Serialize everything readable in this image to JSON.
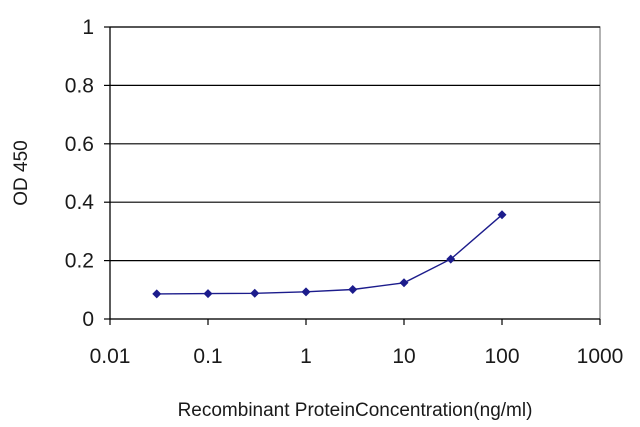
{
  "chart_data": {
    "type": "line",
    "title": "",
    "xlabel": "Recombinant ProteinConcentration(ng/ml)",
    "ylabel": "OD 450",
    "x_scale": "log",
    "xlim": [
      0.01,
      1000
    ],
    "ylim": [
      0,
      1
    ],
    "x_ticks": [
      "0.01",
      "0.1",
      "1",
      "10",
      "100",
      "1000"
    ],
    "y_ticks": [
      "0",
      "0.2",
      "0.4",
      "0.6",
      "0.8",
      "1"
    ],
    "grid": "horizontal",
    "legend": "none",
    "colors": {
      "series": "#1c1c8c",
      "marker": "#1c1c8c"
    },
    "series": [
      {
        "x": [
          0.03,
          0.1,
          0.3,
          1,
          3,
          10,
          30,
          100
        ],
        "y": [
          0.086,
          0.087,
          0.088,
          0.093,
          0.101,
          0.124,
          0.205,
          0.357
        ]
      }
    ]
  }
}
